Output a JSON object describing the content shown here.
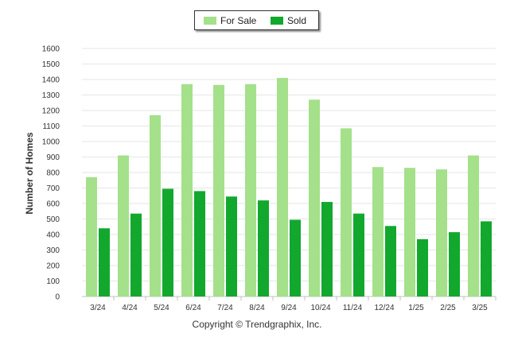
{
  "chart_data": {
    "type": "bar",
    "categories": [
      "3/24",
      "4/24",
      "5/24",
      "6/24",
      "7/24",
      "8/24",
      "9/24",
      "10/24",
      "11/24",
      "12/24",
      "1/25",
      "2/25",
      "3/25"
    ],
    "series": [
      {
        "name": "For Sale",
        "color": "#a4e18a",
        "values": [
          770,
          910,
          1170,
          1370,
          1365,
          1370,
          1410,
          1270,
          1085,
          835,
          830,
          820,
          910
        ]
      },
      {
        "name": "Sold",
        "color": "#12a82e",
        "values": [
          440,
          535,
          695,
          680,
          645,
          620,
          495,
          610,
          535,
          455,
          370,
          415,
          485
        ]
      }
    ],
    "ylabel": "Number of Homes",
    "xlabel": "",
    "ylim": [
      0,
      1600
    ],
    "yticks": [
      0,
      100,
      200,
      300,
      400,
      500,
      600,
      700,
      800,
      900,
      1000,
      1100,
      1200,
      1300,
      1400,
      1500,
      1600
    ],
    "grid": true,
    "legend_position": "top-center"
  },
  "footer": {
    "copyright": "Copyright © Trendgraphix, Inc."
  }
}
